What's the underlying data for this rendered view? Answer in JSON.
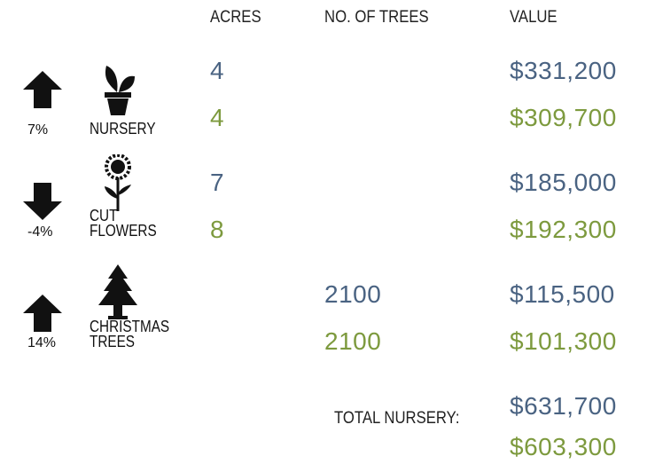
{
  "headers": [
    "ACRES",
    "NO. OF TREES",
    "VALUE"
  ],
  "rows": [
    {
      "change": "7%",
      "direction": "up",
      "label": [
        "NURSERY"
      ],
      "acres": [
        4,
        4
      ],
      "trees": [],
      "value": [
        "$331,200",
        "$309,700"
      ]
    },
    {
      "change": "-4%",
      "direction": "down",
      "label": [
        "CUT",
        "FLOWERS"
      ],
      "acres": [
        7,
        8
      ],
      "trees": [],
      "value": [
        "$185,000",
        "$192,300"
      ]
    },
    {
      "change": "14%",
      "direction": "up",
      "label": [
        "CHRISTMAS",
        "TREES"
      ],
      "acres": [],
      "trees": [
        2100,
        2100
      ],
      "value": [
        "$115,500",
        "$101,300"
      ]
    }
  ],
  "total": {
    "label": "TOTAL NURSERY:",
    "value": [
      "$631,700",
      "$603,300"
    ]
  }
}
